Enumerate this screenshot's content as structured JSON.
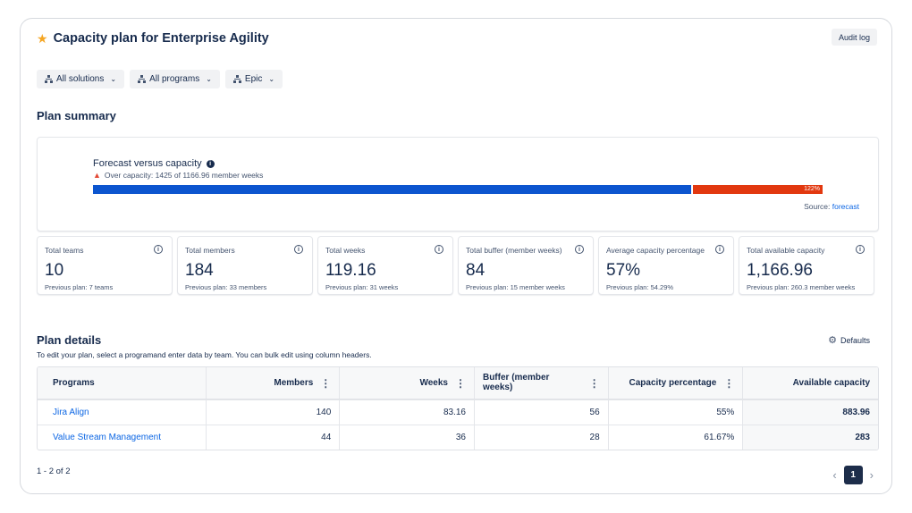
{
  "header": {
    "title": "Capacity plan for Enterprise Agility",
    "star_icon": "star-icon",
    "audit_log_label": "Audit log"
  },
  "filters": [
    {
      "label": "All solutions",
      "icon": "hierarchy-icon"
    },
    {
      "label": "All programs",
      "icon": "hierarchy-icon"
    },
    {
      "label": "Epic",
      "icon": "hierarchy-icon"
    }
  ],
  "plan_summary": {
    "title": "Plan summary",
    "forecast": {
      "title": "Forecast versus capacity",
      "warning": "Over capacity: 1425 of 1166.96 member weeks",
      "capacity_fraction": 0.82,
      "over_label": "122%",
      "source_prefix": "Source: ",
      "source_link": "forecast"
    },
    "metrics": [
      {
        "label": "Total teams",
        "value": "10",
        "previous": "Previous plan: 7 teams"
      },
      {
        "label": "Total members",
        "value": "184",
        "previous": "Previous plan: 33 members"
      },
      {
        "label": "Total weeks",
        "value": "119.16",
        "previous": "Previous plan: 31 weeks"
      },
      {
        "label": "Total buffer (member weeks)",
        "value": "84",
        "previous": "Previous plan: 15 member weeks"
      },
      {
        "label": "Average capacity percentage",
        "value": "57%",
        "previous": "Previous plan: 54.29%"
      },
      {
        "label": "Total available capacity",
        "value": "1,166.96",
        "previous": "Previous plan: 260.3 member weeks"
      }
    ]
  },
  "plan_details": {
    "title": "Plan details",
    "description": "To edit your plan, select a programand enter data by team. You can bulk edit using column headers.",
    "defaults_label": "Defaults",
    "columns": [
      "Programs",
      "Members",
      "Weeks",
      "Buffer (member weeks)",
      "Capacity percentage",
      "Available capacity"
    ],
    "rows": [
      {
        "program": "Jira Align",
        "members": "140",
        "weeks": "83.16",
        "buffer": "56",
        "capacity": "55%",
        "available": "883.96"
      },
      {
        "program": "Value Stream Management",
        "members": "44",
        "weeks": "36",
        "buffer": "28",
        "capacity": "61.67%",
        "available": "283"
      }
    ]
  },
  "pagination": {
    "info": "1 - 2 of 2",
    "current_page": "1",
    "prev_icon": "chevron-left-icon",
    "next_icon": "chevron-right-icon"
  },
  "colors": {
    "capacity_bar": "#0c55cf",
    "over_capacity_bar": "#e2380f",
    "link": "#0c66e4",
    "star": "#f5a623"
  }
}
